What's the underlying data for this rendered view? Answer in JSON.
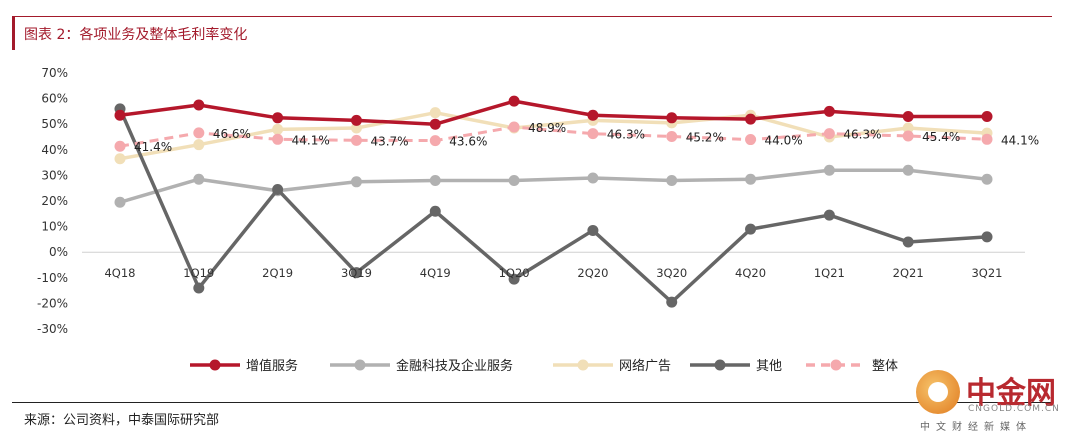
{
  "header": {
    "title": "图表 2：各项业务及整体毛利率变化"
  },
  "footer": {
    "source": "来源：公司资料，中泰国际研究部"
  },
  "watermark": {
    "name": "中金网",
    "url": "CNGOLD.COM.CN",
    "slogan": "中文财经新媒体"
  },
  "chart_data": {
    "type": "line",
    "categories": [
      "4Q18",
      "1Q19",
      "2Q19",
      "3Q19",
      "4Q19",
      "1Q20",
      "2Q20",
      "3Q20",
      "4Q20",
      "1Q21",
      "2Q21",
      "3Q21"
    ],
    "y_ticks": [
      "70%",
      "60%",
      "50%",
      "40%",
      "30%",
      "20%",
      "10%",
      "0%",
      "-10%",
      "-20%",
      "-30%"
    ],
    "ylim": [
      -30,
      70
    ],
    "grid": false,
    "legend_position": "bottom",
    "series": [
      {
        "name": "增值服务",
        "color": "#b5172b",
        "style": "solid",
        "values": [
          53.5,
          57.5,
          52.5,
          51.5,
          50,
          59,
          53.5,
          52.5,
          52,
          55,
          53,
          53
        ]
      },
      {
        "name": "金融科技及企业服务",
        "color": "#b1b1b1",
        "style": "solid",
        "values": [
          19.5,
          28.5,
          24,
          27.5,
          28,
          28,
          29,
          28,
          28.5,
          32,
          32,
          28.5
        ]
      },
      {
        "name": "网络广告",
        "color": "#f1dfb8",
        "style": "solid",
        "values": [
          36.5,
          42,
          48,
          48.5,
          54.5,
          48.5,
          51.5,
          50.5,
          53.5,
          45,
          48.5,
          46.5
        ]
      },
      {
        "name": "其他",
        "color": "#666666",
        "style": "solid",
        "values": [
          56,
          -14,
          24.5,
          -8,
          16,
          -10.5,
          8.5,
          -19.5,
          9,
          14.5,
          4,
          6
        ]
      },
      {
        "name": "整体",
        "color": "#f5a9ad",
        "style": "dashed",
        "values": [
          41.4,
          46.6,
          44.1,
          43.7,
          43.6,
          48.9,
          46.3,
          45.2,
          44.0,
          46.3,
          45.4,
          44.1
        ],
        "labels": [
          "41.4%",
          "46.6%",
          "44.1%",
          "43.7%",
          "43.6%",
          "48.9%",
          "46.3%",
          "45.2%",
          "44.0%",
          "46.3%",
          "45.4%",
          "44.1%"
        ]
      }
    ]
  }
}
